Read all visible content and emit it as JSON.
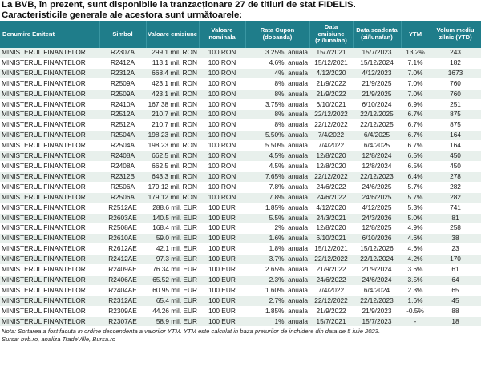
{
  "title_lines": [
    "La BVB, în prezent, sunt disponibile la tranzacționare 27 de titluri de stat FIDELIS.",
    "Caracteristicile generale ale acestora sunt următoarele:"
  ],
  "columns": [
    "Denumire Emitent",
    "Simbol",
    "Valoare emisiune",
    "Valoare nominala",
    "Rata Cupon (dobanda)",
    "Data emisiune (zi/luna/an)",
    "Data scadenta (zi/luna/an)",
    "YTM",
    "Volum mediu zilnic (YTD)"
  ],
  "rows": [
    [
      "MINISTERUL FINANTELOR",
      "R2307A",
      "299.1 mil. RON",
      "100 RON",
      "3.25%, anuala",
      "15/7/2021",
      "15/7/2023",
      "13.2%",
      "243"
    ],
    [
      "MINISTERUL FINANTELOR",
      "R2412A",
      "113.1 mil. RON",
      "100 RON",
      "4.6%, anuala",
      "15/12/2021",
      "15/12/2024",
      "7.1%",
      "182"
    ],
    [
      "MINISTERUL FINANTELOR",
      "R2312A",
      "668.4 mil. RON",
      "100 RON",
      "4%, anuala",
      "4/12/2020",
      "4/12/2023",
      "7.0%",
      "1673"
    ],
    [
      "MINISTERUL FINANTELOR",
      "R2509A",
      "423.1 mil. RON",
      "100 RON",
      "8%, anuala",
      "21/9/2022",
      "21/9/2025",
      "7.0%",
      "760"
    ],
    [
      "MINISTERUL FINANTELOR",
      "R2509A",
      "423.1 mil. RON",
      "100 RON",
      "8%, anuala",
      "21/9/2022",
      "21/9/2025",
      "7.0%",
      "760"
    ],
    [
      "MINISTERUL FINANTELOR",
      "R2410A",
      "167.38 mil. RON",
      "100 RON",
      "3.75%, anuala",
      "6/10/2021",
      "6/10/2024",
      "6.9%",
      "251"
    ],
    [
      "MINISTERUL FINANTELOR",
      "R2512A",
      "210.7 mil. RON",
      "100 RON",
      "8%, anuala",
      "22/12/2022",
      "22/12/2025",
      "6.7%",
      "875"
    ],
    [
      "MINISTERUL FINANTELOR",
      "R2512A",
      "210.7 mil. RON",
      "100 RON",
      "8%, anuala",
      "22/12/2022",
      "22/12/2025",
      "6.7%",
      "875"
    ],
    [
      "MINISTERUL FINANTELOR",
      "R2504A",
      "198.23 mil. RON",
      "100 RON",
      "5.50%, anuala",
      "7/4/2022",
      "6/4/2025",
      "6.7%",
      "164"
    ],
    [
      "MINISTERUL FINANTELOR",
      "R2504A",
      "198.23 mil. RON",
      "100 RON",
      "5.50%, anuala",
      "7/4/2022",
      "6/4/2025",
      "6.7%",
      "164"
    ],
    [
      "MINISTERUL FINANTELOR",
      "R2408A",
      "662.5 mil. RON",
      "100 RON",
      "4.5%, anuala",
      "12/8/2020",
      "12/8/2024",
      "6.5%",
      "450"
    ],
    [
      "MINISTERUL FINANTELOR",
      "R2408A",
      "662.5 mil. RON",
      "100 RON",
      "4.5%, anuala",
      "12/8/2020",
      "12/8/2024",
      "6.5%",
      "450"
    ],
    [
      "MINISTERUL FINANTELOR",
      "R2312B",
      "643.3 mil. RON",
      "100 RON",
      "7.65%, anuala",
      "22/12/2022",
      "22/12/2023",
      "6.4%",
      "278"
    ],
    [
      "MINISTERUL FINANTELOR",
      "R2506A",
      "179.12 mil. RON",
      "100 RON",
      "7.8%, anuala",
      "24/6/2022",
      "24/6/2025",
      "5.7%",
      "282"
    ],
    [
      "MINISTERUL FINANTELOR",
      "R2506A",
      "179.12 mil. RON",
      "100 RON",
      "7.8%, anuala",
      "24/6/2022",
      "24/6/2025",
      "5.7%",
      "282"
    ],
    [
      "MINISTERUL FINANTELOR",
      "R2512AE",
      "288.6 mil. EUR",
      "100 EUR",
      "1.85%, anuala",
      "4/12/2020",
      "4/12/2025",
      "5.3%",
      "741"
    ],
    [
      "MINISTERUL FINANTELOR",
      "R2603AE",
      "140.5 mil. EUR",
      "100 EUR",
      "5.5%, anuala",
      "24/3/2021",
      "24/3/2026",
      "5.0%",
      "81"
    ],
    [
      "MINISTERUL FINANTELOR",
      "R2508AE",
      "168.4 mil. EUR",
      "100 EUR",
      "2%, anuala",
      "12/8/2020",
      "12/8/2025",
      "4.9%",
      "258"
    ],
    [
      "MINISTERUL FINANTELOR",
      "R2610AE",
      "59.0 mil. EUR",
      "100 EUR",
      "1.6%, anuala",
      "6/10/2021",
      "6/10/2026",
      "4.6%",
      "38"
    ],
    [
      "MINISTERUL FINANTELOR",
      "R2612AE",
      "42.1 mil. EUR",
      "100 EUR",
      "1.8%, anuala",
      "15/12/2021",
      "15/12/2026",
      "4.6%",
      "23"
    ],
    [
      "MINISTERUL FINANTELOR",
      "R2412AE",
      "97.3 mil. EUR",
      "100 EUR",
      "3.7%, anuala",
      "22/12/2022",
      "22/12/2024",
      "4.2%",
      "170"
    ],
    [
      "MINISTERUL FINANTELOR",
      "R2409AE",
      "76.34 mil. EUR",
      "100 EUR",
      "2.65%, anuala",
      "21/9/2022",
      "21/9/2024",
      "3.6%",
      "61"
    ],
    [
      "MINISTERUL FINANTELOR",
      "R2406AE",
      "65.52 mil. EUR",
      "100 EUR",
      "2.3%, anuala",
      "24/6/2022",
      "24/6/2024",
      "3.5%",
      "64"
    ],
    [
      "MINISTERUL FINANTELOR",
      "R2404AE",
      "60.95 mil. EUR",
      "100 EUR",
      "1.60%, anuala",
      "7/4/2022",
      "6/4/2024",
      "2.3%",
      "65"
    ],
    [
      "MINISTERUL FINANTELOR",
      "R2312AE",
      "65.4 mil. EUR",
      "100 EUR",
      "2.7%, anuala",
      "22/12/2022",
      "22/12/2023",
      "1.6%",
      "45"
    ],
    [
      "MINISTERUL FINANTELOR",
      "R2309AE",
      "44.26 mil. EUR",
      "100 EUR",
      "1.85%, anuala",
      "21/9/2022",
      "21/9/2023",
      "-0.5%",
      "88"
    ],
    [
      "MINISTERUL FINANTELOR",
      "R2307AE",
      "58.9 mil. EUR",
      "100 EUR",
      "1%, anuala",
      "15/7/2021",
      "15/7/2023",
      "-",
      "18"
    ]
  ],
  "note_lines": [
    "Nota: Sortarea a fost facuta in ordine descendenta a valorilor YTM. YTM este calculat in baza preturilor de inchidere din data de 5 iulie 2023.",
    "Sursa: bvb.ro, analiza TradeVille, Bursa.ro"
  ],
  "colors": {
    "header_bg": "#1f7d8a",
    "header_text": "#ffffff",
    "row_stripe": "#e8f0ec"
  }
}
